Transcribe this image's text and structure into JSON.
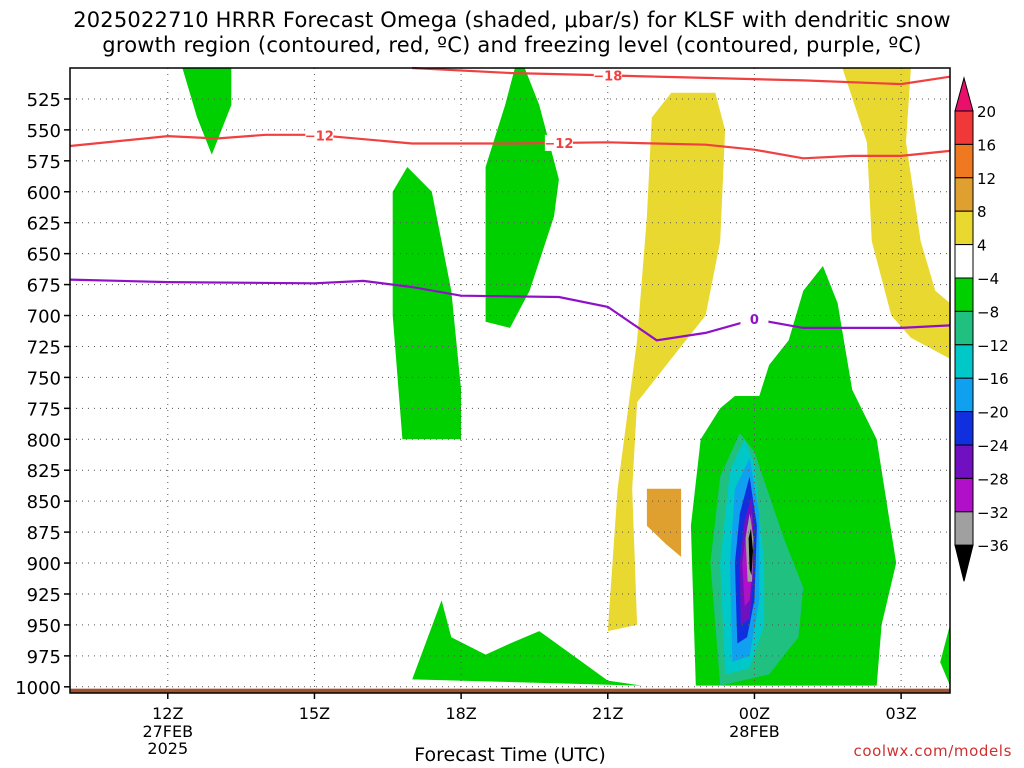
{
  "header": {
    "title_line1": "2025022710 HRRR Forecast Omega (shaded, μbar/s) for KLSF with dendritic snow",
    "title_line2": "growth region (contoured, red, ºC) and freezing level (contoured, purple, ºC)"
  },
  "footer": {
    "xlabel": "Forecast Time (UTC)",
    "credit": "coolwx.com/models"
  },
  "chart_data": {
    "type": "time-height contour",
    "title": "2025022710 HRRR Forecast Omega (shaded, μbar/s) for KLSF with dendritic snow growth region (contoured, red, ºC) and freezing level (contoured, purple, ºC)",
    "xlabel": "Forecast Time (UTC)",
    "ylabel": "",
    "x_hours_from_start": [
      0,
      2,
      4,
      6,
      8,
      10,
      12,
      14,
      16,
      18,
      20,
      22,
      24
    ],
    "x_range_hours": [
      10,
      28
    ],
    "x_ticks": [
      {
        "hour": 12,
        "label": "12Z",
        "sub1": "27FEB",
        "sub2": "2025"
      },
      {
        "hour": 15,
        "label": "15Z",
        "sub1": "",
        "sub2": ""
      },
      {
        "hour": 18,
        "label": "18Z",
        "sub1": "",
        "sub2": ""
      },
      {
        "hour": 21,
        "label": "21Z",
        "sub1": "",
        "sub2": ""
      },
      {
        "hour": 24,
        "label": "00Z",
        "sub1": "28FEB",
        "sub2": ""
      },
      {
        "hour": 27,
        "label": "03Z",
        "sub1": "",
        "sub2": ""
      }
    ],
    "y_range_hpa": [
      500,
      1005
    ],
    "y_ticks": [
      "525",
      "550",
      "575",
      "600",
      "625",
      "650",
      "675",
      "700",
      "725",
      "750",
      "775",
      "800",
      "825",
      "850",
      "875",
      "900",
      "925",
      "950",
      "975",
      "1000"
    ],
    "grid": true,
    "colorbar": {
      "placement": "right",
      "labels": [
        "20",
        "16",
        "12",
        "8",
        "4",
        "−4",
        "−8",
        "−12",
        "−16",
        "−20",
        "−24",
        "−28",
        "−32",
        "−36"
      ],
      "colors": [
        "#e8106a",
        "#f03838",
        "#f07820",
        "#e0a030",
        "#e8d830",
        "#ffffff",
        "#00d000",
        "#20c080",
        "#00c8c8",
        "#10a0f0",
        "#1030e0",
        "#7010c0",
        "#b010c8",
        "#a0a0a0",
        "#000000"
      ]
    },
    "contours": {
      "dgz": {
        "color": "#f04040",
        "lines": [
          {
            "label": "−18",
            "label_hour": 21.0,
            "points": [
              [
                17,
                500
              ],
              [
                19,
                504
              ],
              [
                21,
                506
              ],
              [
                23,
                508
              ],
              [
                25,
                510
              ],
              [
                27,
                513
              ],
              [
                28,
                507
              ]
            ]
          },
          {
            "label": "−12",
            "label_hour": 20.0,
            "points": [
              [
                10,
                563
              ],
              [
                12,
                555
              ],
              [
                13,
                557
              ],
              [
                14,
                554
              ],
              [
                15,
                554
              ],
              [
                17,
                561
              ],
              [
                19,
                561
              ],
              [
                21,
                560
              ],
              [
                23,
                562
              ],
              [
                24,
                566
              ],
              [
                25,
                573
              ],
              [
                26,
                571
              ],
              [
                27,
                571
              ],
              [
                28,
                567
              ]
            ]
          }
        ],
        "extra_labels": [
          {
            "label": "−12",
            "hour": 15.1
          }
        ]
      },
      "freezing": {
        "color": "#9010c8",
        "lines": [
          {
            "label": "0",
            "label_hour": 24.0,
            "points": [
              [
                10,
                671
              ],
              [
                12,
                673
              ],
              [
                15,
                674
              ],
              [
                16,
                672
              ],
              [
                17,
                677
              ],
              [
                18,
                684
              ],
              [
                20,
                685
              ],
              [
                21,
                693
              ],
              [
                22,
                720
              ],
              [
                23,
                714
              ],
              [
                24,
                703
              ],
              [
                25,
                710
              ],
              [
                27,
                710
              ],
              [
                28,
                708
              ]
            ]
          }
        ]
      }
    },
    "omega_regions_note": "shaded omega values in μbar/s; negative (green to black) ascent, positive (yellow to orange) descent",
    "omega_regions": [
      {
        "level": "−4",
        "polygons": [
          [
            [
              12.3,
              500
            ],
            [
              13.3,
              500
            ],
            [
              13.3,
              530
            ],
            [
              12.9,
              570
            ],
            [
              12.6,
              540
            ]
          ],
          [
            [
              16.6,
              600
            ],
            [
              16.9,
              580
            ],
            [
              17.4,
              600
            ],
            [
              17.8,
              680
            ],
            [
              18.0,
              760
            ],
            [
              18.0,
              800
            ],
            [
              16.8,
              800
            ],
            [
              16.6,
              700
            ]
          ],
          [
            [
              18.5,
              580
            ],
            [
              18.9,
              530
            ],
            [
              19.1,
              500
            ],
            [
              19.3,
              500
            ],
            [
              19.6,
              530
            ],
            [
              20.0,
              590
            ],
            [
              19.9,
              620
            ],
            [
              19.4,
              680
            ],
            [
              19.0,
              710
            ],
            [
              18.5,
              705
            ]
          ],
          [
            [
              17.0,
              994
            ],
            [
              17.6,
              930
            ],
            [
              17.8,
              960
            ],
            [
              18.5,
              974
            ],
            [
              19.0,
              965
            ],
            [
              19.6,
              955
            ],
            [
              20.3,
              975
            ],
            [
              21.0,
              995
            ],
            [
              21.7,
              999
            ]
          ],
          [
            [
              22.8,
              999
            ],
            [
              22.7,
              870
            ],
            [
              22.9,
              800
            ],
            [
              23.3,
              775
            ],
            [
              23.6,
              765
            ],
            [
              24.1,
              765
            ],
            [
              24.3,
              740
            ],
            [
              24.7,
              720
            ],
            [
              25.0,
              680
            ],
            [
              25.4,
              660
            ],
            [
              25.7,
              690
            ],
            [
              26.0,
              760
            ],
            [
              26.5,
              800
            ],
            [
              26.9,
              900
            ],
            [
              26.6,
              950
            ],
            [
              26.5,
              999
            ]
          ],
          [
            [
              27.8,
              980
            ],
            [
              28.0,
              950
            ],
            [
              28.0,
              999
            ]
          ]
        ]
      },
      {
        "level": "−8",
        "polygons": [
          [
            [
              23.3,
              999
            ],
            [
              23.1,
              900
            ],
            [
              23.3,
              830
            ],
            [
              23.7,
              795
            ],
            [
              24.0,
              810
            ],
            [
              24.6,
              880
            ],
            [
              25.0,
              920
            ],
            [
              24.9,
              960
            ],
            [
              24.3,
              990
            ]
          ]
        ]
      },
      {
        "level": "−12",
        "polygons": [
          [
            [
              23.4,
              990
            ],
            [
              23.3,
              900
            ],
            [
              23.5,
              825
            ],
            [
              23.8,
              800
            ],
            [
              24.0,
              820
            ],
            [
              24.2,
              900
            ],
            [
              24.2,
              950
            ],
            [
              23.9,
              985
            ]
          ]
        ]
      },
      {
        "level": "−16",
        "polygons": [
          [
            [
              23.55,
              980
            ],
            [
              23.5,
              900
            ],
            [
              23.6,
              840
            ],
            [
              23.9,
              815
            ],
            [
              24.1,
              860
            ],
            [
              24.1,
              930
            ],
            [
              23.9,
              975
            ]
          ]
        ]
      },
      {
        "level": "−20",
        "polygons": [
          [
            [
              23.65,
              965
            ],
            [
              23.6,
              900
            ],
            [
              23.7,
              860
            ],
            [
              23.9,
              830
            ],
            [
              24.05,
              870
            ],
            [
              24.0,
              930
            ],
            [
              23.85,
              960
            ]
          ]
        ]
      },
      {
        "level": "−24",
        "polygons": [
          [
            [
              23.72,
              950
            ],
            [
              23.7,
              900
            ],
            [
              23.8,
              865
            ],
            [
              23.95,
              845
            ],
            [
              24.0,
              900
            ],
            [
              23.9,
              945
            ]
          ]
        ]
      },
      {
        "level": "−28",
        "polygons": [
          [
            [
              23.8,
              935
            ],
            [
              23.75,
              900
            ],
            [
              23.85,
              870
            ],
            [
              23.95,
              860
            ],
            [
              23.97,
              900
            ],
            [
              23.9,
              930
            ]
          ]
        ]
      },
      {
        "level": "−32",
        "polygons": [
          [
            [
              23.86,
              915
            ],
            [
              23.82,
              880
            ],
            [
              23.9,
              860
            ],
            [
              23.98,
              880
            ],
            [
              23.95,
              915
            ]
          ]
        ]
      },
      {
        "level": "−36",
        "polygons": [
          [
            [
              23.9,
              905
            ],
            [
              23.88,
              880
            ],
            [
              23.93,
              872
            ],
            [
              23.97,
              890
            ],
            [
              23.94,
              910
            ]
          ]
        ]
      },
      {
        "level": "4",
        "polygons": [
          [
            [
              21.2,
              840
            ],
            [
              21.6,
              720
            ],
            [
              21.8,
              620
            ],
            [
              21.9,
              540
            ],
            [
              22.3,
              520
            ],
            [
              23.2,
              520
            ],
            [
              23.4,
              550
            ],
            [
              23.3,
              640
            ],
            [
              23.0,
              700
            ],
            [
              22.3,
              735
            ],
            [
              21.6,
              770
            ],
            [
              21.5,
              840
            ],
            [
              21.6,
              950
            ],
            [
              21.0,
              955
            ]
          ],
          [
            [
              25.8,
              500
            ],
            [
              27.2,
              500
            ],
            [
              27.1,
              560
            ],
            [
              27.4,
              640
            ],
            [
              27.7,
              680
            ],
            [
              28.0,
              690
            ],
            [
              28.0,
              735
            ],
            [
              27.2,
              718
            ],
            [
              26.8,
              700
            ],
            [
              26.4,
              640
            ],
            [
              26.3,
              560
            ]
          ],
          [
            [
              26.7,
              500
            ],
            [
              27.2,
              500
            ],
            [
              27.0,
              520
            ]
          ]
        ]
      },
      {
        "level": "8",
        "polygons": [
          [
            [
              21.8,
              840
            ],
            [
              22.5,
              840
            ],
            [
              22.5,
              895
            ],
            [
              22.2,
              885
            ],
            [
              21.8,
              870
            ]
          ]
        ]
      }
    ]
  }
}
